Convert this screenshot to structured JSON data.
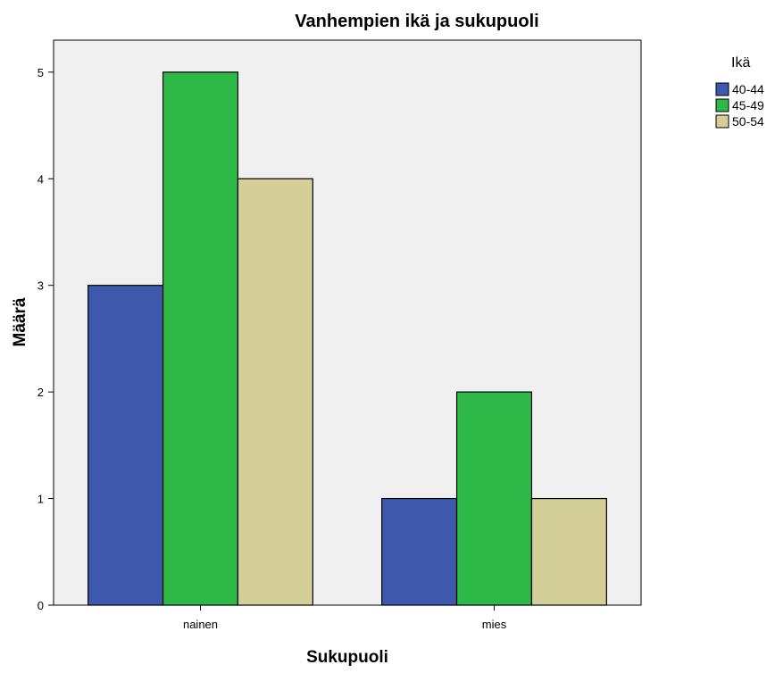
{
  "chart_data": {
    "type": "bar",
    "title": "Vanhempien ikä ja sukupuoli",
    "xlabel": "Sukupuoli",
    "ylabel": "Määrä",
    "categories": [
      "nainen",
      "mies"
    ],
    "series": [
      {
        "name": "40-44",
        "values": [
          3,
          1
        ],
        "color": "#3e58ac"
      },
      {
        "name": "45-49",
        "values": [
          5,
          2
        ],
        "color": "#2eb848"
      },
      {
        "name": "50-54",
        "values": [
          4,
          1
        ],
        "color": "#d4ce99"
      }
    ],
    "ylim": [
      0,
      5.3
    ],
    "yticks": [
      0,
      1,
      2,
      3,
      4,
      5
    ],
    "grid": false,
    "legend": {
      "title": "Ikä",
      "placement": "right"
    },
    "plot_background": "#f0f0f0"
  }
}
